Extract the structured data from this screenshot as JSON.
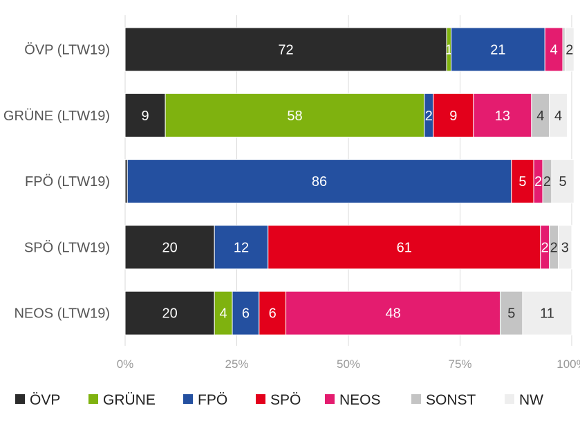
{
  "chart_data": {
    "type": "bar",
    "orientation": "horizontal",
    "stacked": true,
    "xlim": [
      0,
      100
    ],
    "x_ticks": [
      0,
      25,
      50,
      75,
      100
    ],
    "x_tick_labels": [
      "0%",
      "25%",
      "50%",
      "75%",
      "100%"
    ],
    "grid": true,
    "legend_position": "bottom",
    "categories": [
      "ÖVP (LTW19)",
      "GRÜNE (LTW19)",
      "FPÖ (LTW19)",
      "SPÖ (LTW19)",
      "NEOS (LTW19)"
    ],
    "series": [
      {
        "name": "ÖVP",
        "color": "#2b2b2b",
        "label_color": "#ffffff",
        "values": [
          72,
          9,
          0.5,
          20,
          20
        ],
        "labels": [
          "72",
          "9",
          "",
          "20",
          "20"
        ]
      },
      {
        "name": "GRÜNE",
        "color": "#7fb20f",
        "label_color": "#ffffff",
        "values": [
          1,
          58,
          0,
          0,
          4
        ],
        "labels": [
          "1",
          "58",
          "",
          "",
          "4"
        ]
      },
      {
        "name": "FPÖ",
        "color": "#2450a0",
        "label_color": "#ffffff",
        "values": [
          21,
          2,
          86,
          12,
          6
        ],
        "labels": [
          "21",
          "2",
          "86",
          "12",
          "6"
        ]
      },
      {
        "name": "SPÖ",
        "color": "#e3001b",
        "label_color": "#ffffff",
        "values": [
          0,
          9,
          5,
          61,
          6
        ],
        "labels": [
          "",
          "9",
          "5",
          "61",
          "6"
        ]
      },
      {
        "name": "NEOS",
        "color": "#e41c6f",
        "label_color": "#ffffff",
        "values": [
          4,
          13,
          2,
          2,
          48
        ],
        "labels": [
          "4",
          "13",
          "2",
          "2",
          "48"
        ]
      },
      {
        "name": "SONST",
        "color": "#c4c4c4",
        "label_color": "#333333",
        "values": [
          0.5,
          4,
          2,
          2,
          5
        ],
        "labels": [
          "",
          "4",
          "2",
          "2",
          "5"
        ]
      },
      {
        "name": "NW",
        "color": "#eeeeee",
        "label_color": "#333333",
        "values": [
          2,
          4,
          5,
          3,
          11
        ],
        "labels": [
          "2",
          "4",
          "5",
          "3",
          "11"
        ]
      }
    ]
  }
}
